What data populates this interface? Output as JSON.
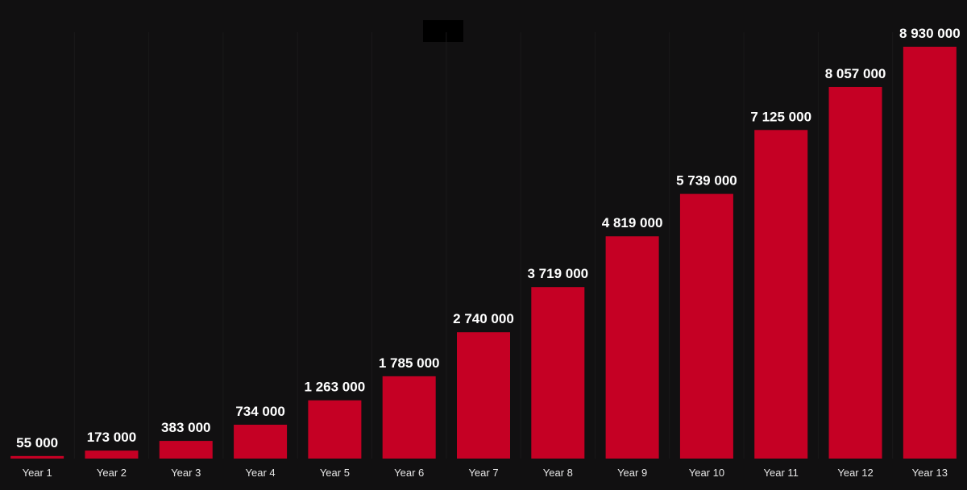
{
  "colors": {
    "background": "#111011",
    "bar": "#c50024",
    "gridline": "#1a191a",
    "label": "#ffffff",
    "title_box": "#000000"
  },
  "chart_data": {
    "type": "bar",
    "title": "",
    "xlabel": "",
    "ylabel": "",
    "categories": [
      "Year 1",
      "Year 2",
      "Year 3",
      "Year 4",
      "Year 5",
      "Year 6",
      "Year 7",
      "Year 8",
      "Year 9",
      "Year 10",
      "Year 11",
      "Year 12",
      "Year 13"
    ],
    "values": [
      55000,
      173000,
      383000,
      734000,
      1263000,
      1785000,
      2740000,
      3719000,
      4819000,
      5739000,
      7125000,
      8057000,
      8930000
    ],
    "value_labels": [
      "55 000",
      "173 000",
      "383 000",
      "734 000",
      "1 263 000",
      "1 785 000",
      "2 740 000",
      "3 719 000",
      "4 819 000",
      "5 739 000",
      "7 125 000",
      "8 057 000",
      "8 930 000"
    ],
    "ylim": [
      0,
      8930000
    ],
    "grid": false,
    "legend": "none"
  }
}
